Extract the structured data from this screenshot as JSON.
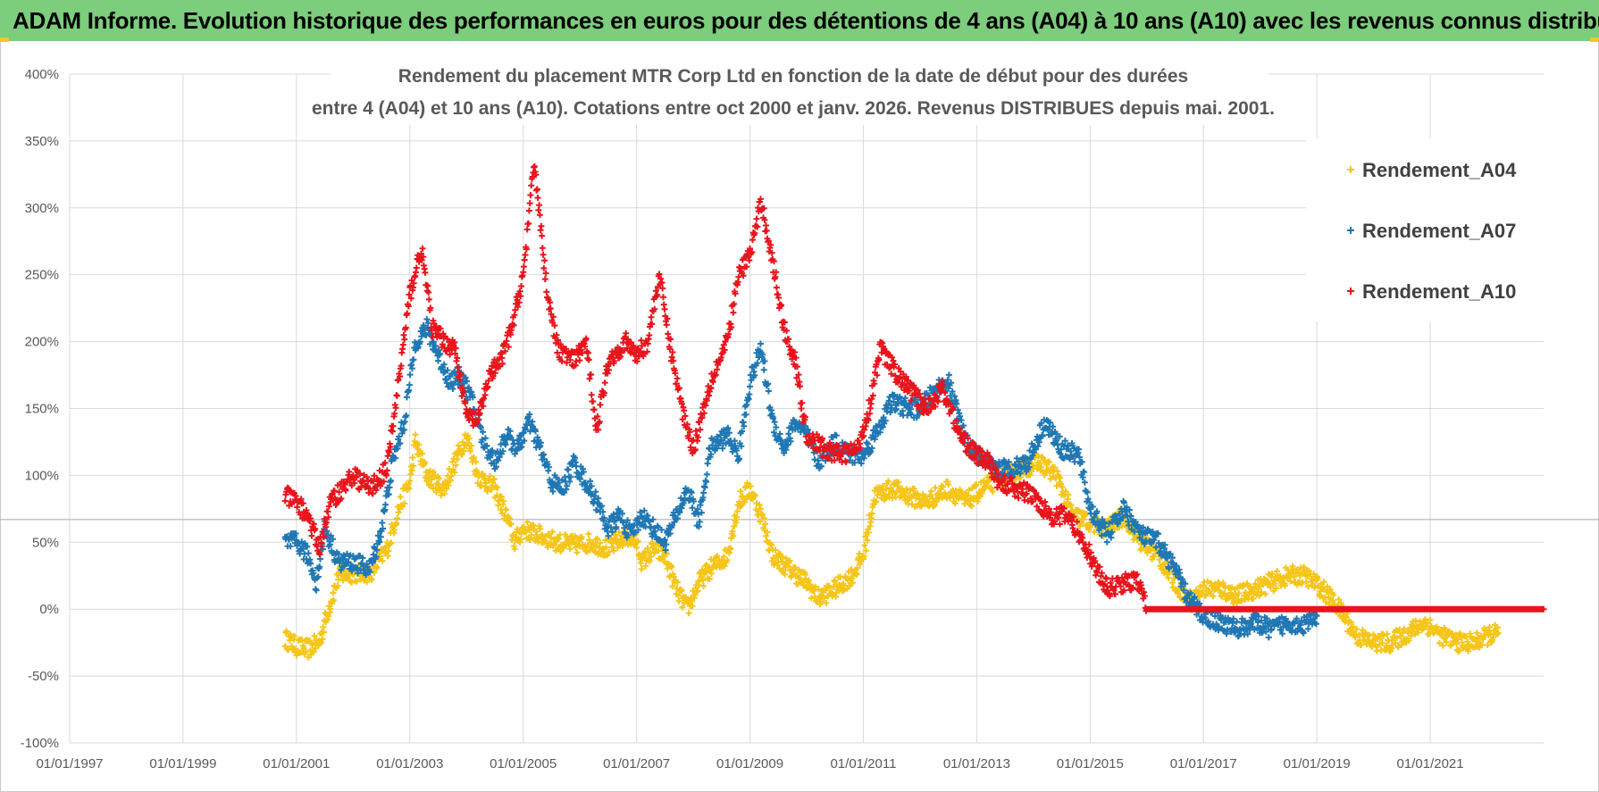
{
  "banner": {
    "title": "ADAM Informe. Evolution historique des performances en euros pour des détentions de 4 ans (A04) à 10 ans (A10) avec les revenus connus distribués"
  },
  "chart_data": {
    "type": "scatter",
    "title_lines": [
      "Rendement du placement MTR Corp Ltd en fonction de la date de début pour des durées",
      "entre 4 (A04) et 10 ans (A10). Cotations entre oct 2000 et janv. 2026. Revenus DISTRIBUES depuis mai. 2001."
    ],
    "xlabel": "",
    "ylabel": "",
    "xlim": [
      1997.0,
      2023.0
    ],
    "ylim": [
      -100,
      400
    ],
    "x_tick_labels": [
      "01/01/1997",
      "01/01/1999",
      "01/01/2001",
      "01/01/2003",
      "01/01/2005",
      "01/01/2007",
      "01/01/2009",
      "01/01/2011",
      "01/01/2013",
      "01/01/2015",
      "01/01/2017",
      "01/01/2019",
      "01/01/2021"
    ],
    "x_tick_values": [
      1997,
      1999,
      2001,
      2003,
      2005,
      2007,
      2009,
      2011,
      2013,
      2015,
      2017,
      2019,
      2021
    ],
    "y_tick_labels": [
      "400%",
      "350%",
      "300%",
      "250%",
      "200%",
      "150%",
      "100%",
      "50%",
      "0%",
      "-50%",
      "-100%"
    ],
    "y_tick_values": [
      400,
      350,
      300,
      250,
      200,
      150,
      100,
      50,
      0,
      -50,
      -100
    ],
    "grid": true,
    "legend_position": "right",
    "reference_line_value": 67,
    "series": [
      {
        "name": "Rendement_A04",
        "color": "#f5c518",
        "points": [
          [
            2000.8,
            -22
          ],
          [
            2001.0,
            -28
          ],
          [
            2001.2,
            -30
          ],
          [
            2001.4,
            -25
          ],
          [
            2001.6,
            5
          ],
          [
            2001.75,
            25
          ],
          [
            2002.0,
            27
          ],
          [
            2002.3,
            27
          ],
          [
            2002.6,
            45
          ],
          [
            2002.8,
            75
          ],
          [
            2003.0,
            95
          ],
          [
            2003.1,
            125
          ],
          [
            2003.3,
            100
          ],
          [
            2003.6,
            90
          ],
          [
            2003.8,
            110
          ],
          [
            2004.0,
            130
          ],
          [
            2004.2,
            100
          ],
          [
            2004.5,
            90
          ],
          [
            2004.7,
            70
          ],
          [
            2004.85,
            50
          ],
          [
            2005.0,
            60
          ],
          [
            2005.3,
            55
          ],
          [
            2005.6,
            50
          ],
          [
            2005.9,
            48
          ],
          [
            2006.2,
            50
          ],
          [
            2006.5,
            45
          ],
          [
            2006.8,
            55
          ],
          [
            2007.0,
            50
          ],
          [
            2007.1,
            35
          ],
          [
            2007.3,
            45
          ],
          [
            2007.5,
            40
          ],
          [
            2007.7,
            15
          ],
          [
            2007.9,
            0
          ],
          [
            2008.1,
            20
          ],
          [
            2008.3,
            30
          ],
          [
            2008.6,
            40
          ],
          [
            2008.8,
            80
          ],
          [
            2009.0,
            90
          ],
          [
            2009.2,
            70
          ],
          [
            2009.4,
            40
          ],
          [
            2009.7,
            30
          ],
          [
            2010.0,
            20
          ],
          [
            2010.2,
            8
          ],
          [
            2010.5,
            15
          ],
          [
            2010.8,
            25
          ],
          [
            2011.0,
            40
          ],
          [
            2011.2,
            85
          ],
          [
            2011.5,
            90
          ],
          [
            2011.8,
            85
          ],
          [
            2012.1,
            80
          ],
          [
            2012.5,
            90
          ],
          [
            2012.8,
            80
          ],
          [
            2013.1,
            90
          ],
          [
            2013.5,
            100
          ],
          [
            2013.8,
            105
          ],
          [
            2014.1,
            110
          ],
          [
            2014.4,
            100
          ],
          [
            2014.7,
            70
          ],
          [
            2015.0,
            65
          ],
          [
            2015.3,
            60
          ],
          [
            2015.6,
            70
          ],
          [
            2015.9,
            50
          ],
          [
            2016.2,
            40
          ],
          [
            2016.5,
            20
          ],
          [
            2016.8,
            5
          ],
          [
            2017.0,
            15
          ],
          [
            2017.3,
            15
          ],
          [
            2017.6,
            10
          ],
          [
            2017.9,
            15
          ],
          [
            2018.2,
            20
          ],
          [
            2018.5,
            25
          ],
          [
            2018.8,
            25
          ],
          [
            2019.1,
            15
          ],
          [
            2019.4,
            0
          ],
          [
            2019.7,
            -20
          ],
          [
            2020.0,
            -25
          ],
          [
            2020.3,
            -25
          ],
          [
            2020.6,
            -18
          ],
          [
            2020.9,
            -10
          ],
          [
            2021.2,
            -20
          ],
          [
            2021.5,
            -25
          ],
          [
            2021.8,
            -25
          ],
          [
            2022.0,
            -20
          ],
          [
            2022.2,
            -18
          ]
        ]
      },
      {
        "name": "Rendement_A07",
        "color": "#1f77b4",
        "points": [
          [
            2000.8,
            50
          ],
          [
            2001.0,
            50
          ],
          [
            2001.2,
            40
          ],
          [
            2001.35,
            20
          ],
          [
            2001.5,
            60
          ],
          [
            2001.75,
            35
          ],
          [
            2002.0,
            35
          ],
          [
            2002.3,
            30
          ],
          [
            2002.5,
            60
          ],
          [
            2002.7,
            110
          ],
          [
            2002.9,
            140
          ],
          [
            2003.1,
            200
          ],
          [
            2003.3,
            210
          ],
          [
            2003.5,
            190
          ],
          [
            2003.7,
            170
          ],
          [
            2003.9,
            175
          ],
          [
            2004.1,
            155
          ],
          [
            2004.3,
            125
          ],
          [
            2004.5,
            110
          ],
          [
            2004.7,
            130
          ],
          [
            2004.9,
            120
          ],
          [
            2005.1,
            140
          ],
          [
            2005.3,
            120
          ],
          [
            2005.5,
            95
          ],
          [
            2005.7,
            90
          ],
          [
            2005.9,
            110
          ],
          [
            2006.1,
            95
          ],
          [
            2006.3,
            80
          ],
          [
            2006.5,
            60
          ],
          [
            2006.7,
            70
          ],
          [
            2006.9,
            55
          ],
          [
            2007.1,
            70
          ],
          [
            2007.3,
            60
          ],
          [
            2007.5,
            50
          ],
          [
            2007.7,
            70
          ],
          [
            2007.9,
            90
          ],
          [
            2008.1,
            65
          ],
          [
            2008.3,
            120
          ],
          [
            2008.6,
            130
          ],
          [
            2008.8,
            115
          ],
          [
            2009.0,
            170
          ],
          [
            2009.2,
            195
          ],
          [
            2009.4,
            140
          ],
          [
            2009.6,
            120
          ],
          [
            2009.8,
            140
          ],
          [
            2010.0,
            130
          ],
          [
            2010.2,
            110
          ],
          [
            2010.5,
            125
          ],
          [
            2010.8,
            115
          ],
          [
            2011.0,
            115
          ],
          [
            2011.2,
            130
          ],
          [
            2011.5,
            155
          ],
          [
            2011.8,
            150
          ],
          [
            2012.0,
            150
          ],
          [
            2012.3,
            165
          ],
          [
            2012.5,
            170
          ],
          [
            2012.8,
            125
          ],
          [
            2013.0,
            115
          ],
          [
            2013.3,
            105
          ],
          [
            2013.6,
            105
          ],
          [
            2013.9,
            110
          ],
          [
            2014.2,
            140
          ],
          [
            2014.5,
            120
          ],
          [
            2014.8,
            115
          ],
          [
            2015.0,
            75
          ],
          [
            2015.3,
            55
          ],
          [
            2015.6,
            75
          ],
          [
            2015.9,
            55
          ],
          [
            2016.2,
            50
          ],
          [
            2016.5,
            30
          ],
          [
            2016.7,
            10
          ],
          [
            2017.0,
            -5
          ],
          [
            2017.3,
            -10
          ],
          [
            2017.6,
            -15
          ],
          [
            2017.9,
            -10
          ],
          [
            2018.2,
            -15
          ],
          [
            2018.5,
            -10
          ],
          [
            2018.8,
            -12
          ],
          [
            2019.0,
            -5
          ]
        ]
      },
      {
        "name": "Rendement_A10",
        "color": "#e8141c",
        "points": [
          [
            2000.8,
            85
          ],
          [
            2001.0,
            80
          ],
          [
            2001.2,
            70
          ],
          [
            2001.4,
            45
          ],
          [
            2001.6,
            80
          ],
          [
            2001.8,
            90
          ],
          [
            2002.0,
            100
          ],
          [
            2002.3,
            90
          ],
          [
            2002.6,
            105
          ],
          [
            2002.8,
            170
          ],
          [
            2003.0,
            235
          ],
          [
            2003.2,
            270
          ],
          [
            2003.4,
            210
          ],
          [
            2003.6,
            200
          ],
          [
            2003.8,
            195
          ],
          [
            2004.0,
            145
          ],
          [
            2004.2,
            140
          ],
          [
            2004.4,
            175
          ],
          [
            2004.6,
            185
          ],
          [
            2004.8,
            210
          ],
          [
            2005.0,
            250
          ],
          [
            2005.2,
            335
          ],
          [
            2005.4,
            245
          ],
          [
            2005.6,
            195
          ],
          [
            2005.9,
            185
          ],
          [
            2006.1,
            200
          ],
          [
            2006.3,
            135
          ],
          [
            2006.5,
            185
          ],
          [
            2006.8,
            200
          ],
          [
            2007.0,
            190
          ],
          [
            2007.2,
            200
          ],
          [
            2007.4,
            250
          ],
          [
            2007.6,
            195
          ],
          [
            2007.8,
            150
          ],
          [
            2008.0,
            120
          ],
          [
            2008.3,
            170
          ],
          [
            2008.6,
            200
          ],
          [
            2008.8,
            250
          ],
          [
            2009.0,
            265
          ],
          [
            2009.2,
            305
          ],
          [
            2009.4,
            260
          ],
          [
            2009.6,
            210
          ],
          [
            2009.8,
            185
          ],
          [
            2010.0,
            130
          ],
          [
            2010.3,
            120
          ],
          [
            2010.6,
            115
          ],
          [
            2010.9,
            120
          ],
          [
            2011.1,
            150
          ],
          [
            2011.3,
            195
          ],
          [
            2011.6,
            175
          ],
          [
            2011.9,
            160
          ],
          [
            2012.1,
            150
          ],
          [
            2012.4,
            165
          ],
          [
            2012.7,
            130
          ],
          [
            2013.0,
            115
          ],
          [
            2013.2,
            110
          ],
          [
            2013.4,
            95
          ],
          [
            2013.7,
            90
          ],
          [
            2014.0,
            85
          ],
          [
            2014.3,
            70
          ],
          [
            2014.6,
            70
          ],
          [
            2014.9,
            50
          ],
          [
            2015.1,
            30
          ],
          [
            2015.3,
            15
          ],
          [
            2015.6,
            20
          ],
          [
            2015.9,
            20
          ],
          [
            2016.0,
            0
          ],
          [
            2017.0,
            0
          ],
          [
            2018.0,
            0
          ],
          [
            2019.0,
            0
          ],
          [
            2020.0,
            0
          ],
          [
            2021.0,
            0
          ],
          [
            2022.0,
            0
          ],
          [
            2023.0,
            0
          ]
        ]
      }
    ]
  }
}
